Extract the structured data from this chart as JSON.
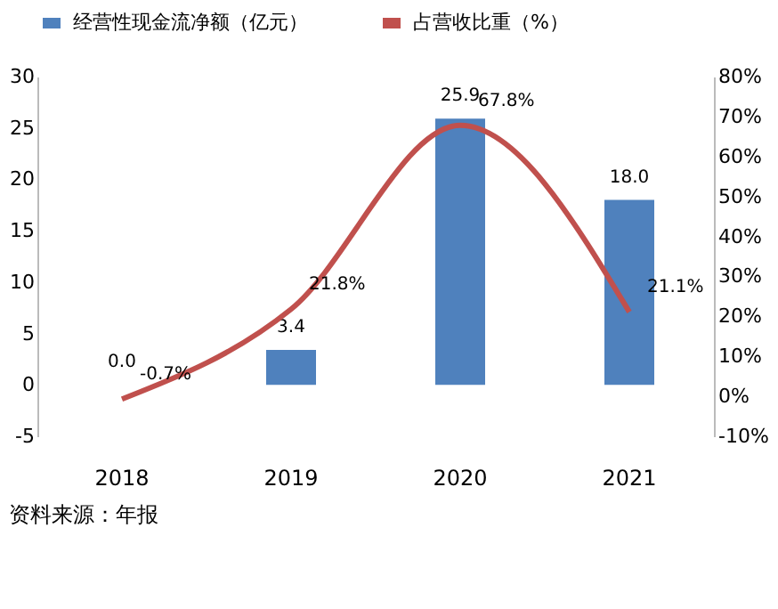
{
  "chart_data": {
    "type": "bar",
    "categories": [
      "2018",
      "2019",
      "2020",
      "2021"
    ],
    "series": [
      {
        "name": "经营性现金流净额（亿元）",
        "color": "#4f81bd",
        "values": [
          0.0,
          3.4,
          25.9,
          18.0
        ],
        "value_labels": [
          "0.0",
          "3.4",
          "25.9",
          "18.0"
        ]
      },
      {
        "name": "占营收比重（%）",
        "type": "line",
        "axis": "y2",
        "color": "#c0504d",
        "values": [
          -0.7,
          21.8,
          67.8,
          21.1
        ],
        "value_labels": [
          "-0.7%",
          "21.8%",
          "67.8%",
          "21.1%"
        ]
      }
    ],
    "ylim": [
      -5,
      30
    ],
    "yticks": [
      -5,
      0,
      5,
      10,
      15,
      20,
      25,
      30
    ],
    "y2lim": [
      -10,
      80
    ],
    "y2ticks": [
      {
        "value": -10,
        "label": "-10%"
      },
      {
        "value": 0,
        "label": "0%"
      },
      {
        "value": 10,
        "label": "10%"
      },
      {
        "value": 20,
        "label": "20%"
      },
      {
        "value": 30,
        "label": "30%"
      },
      {
        "value": 40,
        "label": "40%"
      },
      {
        "value": 50,
        "label": "50%"
      },
      {
        "value": 60,
        "label": "60%"
      },
      {
        "value": 70,
        "label": "70%"
      },
      {
        "value": 80,
        "label": "80%"
      }
    ],
    "grid": false,
    "legend": "top",
    "marker": "none",
    "annotations": [
      "资料来源：年报"
    ]
  }
}
